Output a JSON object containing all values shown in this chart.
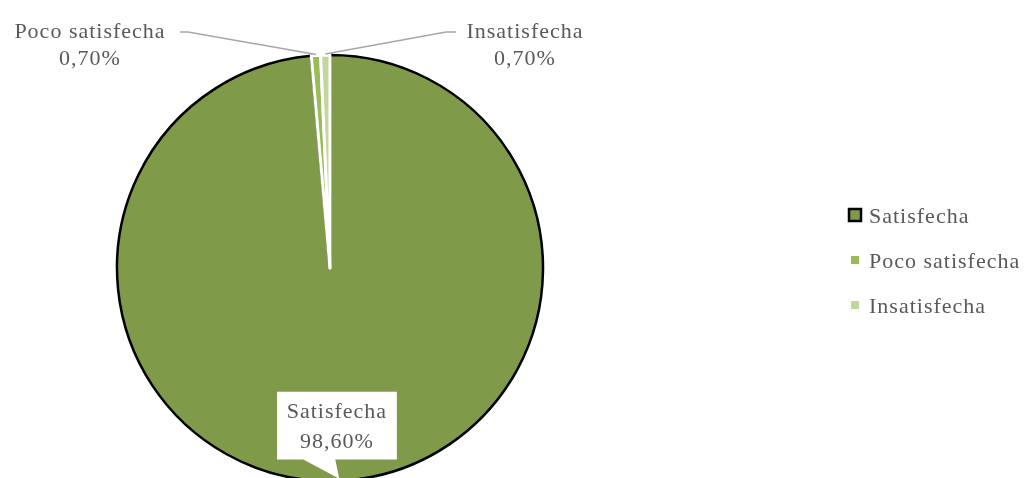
{
  "chart_data": {
    "type": "pie",
    "categories": [
      "Satisfecha",
      "Poco satisfecha",
      "Insatisfecha"
    ],
    "values": [
      98.6,
      0.7,
      0.7
    ],
    "colors": [
      "#7f9a48",
      "#9bbb59",
      "#c3d69b"
    ],
    "value_labels": [
      "98,60%",
      "0,70%",
      "0,70%"
    ],
    "legend": "right"
  }
}
